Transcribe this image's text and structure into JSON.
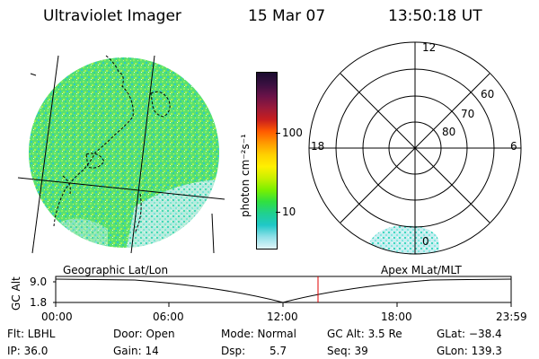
{
  "header": {
    "instrument": "Ultraviolet Imager",
    "date": "15 Mar 07",
    "time": "13:50:18 UT"
  },
  "colorbar": {
    "unit_label": "photon cm⁻²s⁻¹",
    "ticks": [
      "100",
      "10"
    ],
    "colors": [
      "#1a0b2e",
      "#3a1040",
      "#6a1248",
      "#9a1a3a",
      "#c81e1e",
      "#ff5a00",
      "#ff9a00",
      "#ffd000",
      "#fff000",
      "#c8f000",
      "#7af000",
      "#30e040",
      "#20d090",
      "#20c8c8",
      "#90e0e8",
      "#e0f4f8"
    ]
  },
  "polar_plot": {
    "mlt_labels": {
      "top": "12",
      "left": "18",
      "right": "6",
      "bottom": "0"
    },
    "lat_labels": [
      "60",
      "70",
      "80"
    ]
  },
  "timeline": {
    "left_label": "Geographic Lat/Lon",
    "right_label": "Apex MLat/MLT",
    "y_axis_label": "GC Alt",
    "y_ticks": [
      "9.0",
      "1.8"
    ],
    "x_ticks": [
      "00:00",
      "06:00",
      "12:00",
      "18:00",
      "23:59"
    ]
  },
  "footer": {
    "flt": "Flt: LBHL",
    "ip": "IP: 36.0",
    "door": "Door: Open",
    "gain": "Gain: 14",
    "mode": "Mode: Normal",
    "dsp_label": "Dsp:",
    "dsp_value": "5.7",
    "gc_alt": "GC Alt: 3.5 Re",
    "seq": "Seq: 39",
    "glat": "GLat: −38.4",
    "glon": "GLon: 139.3"
  }
}
